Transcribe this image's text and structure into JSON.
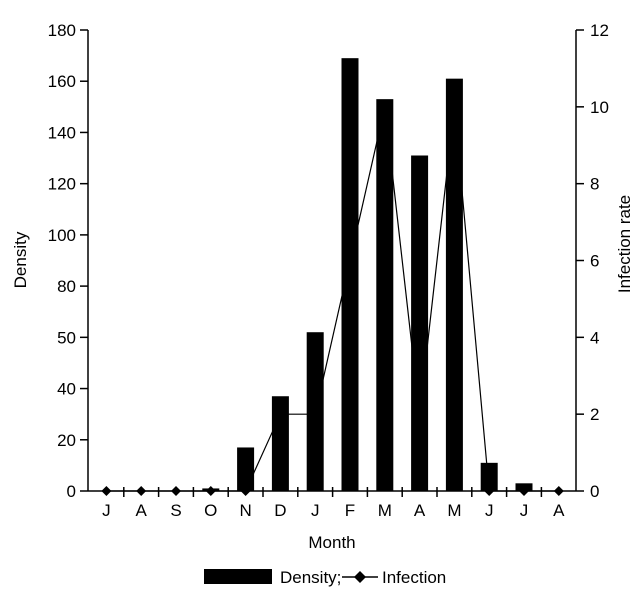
{
  "chart_data": {
    "type": "bar",
    "categories": [
      "J",
      "A",
      "S",
      "O",
      "N",
      "D",
      "J",
      "F",
      "M",
      "A",
      "M",
      "J",
      "J",
      "A"
    ],
    "series": [
      {
        "name": "Density",
        "type": "bar",
        "axis": "left",
        "values": [
          0,
          0,
          0,
          1,
          17,
          37,
          53,
          169,
          153,
          131,
          161,
          11,
          3,
          0
        ]
      },
      {
        "name": "Infection",
        "type": "line",
        "axis": "right",
        "values": [
          0,
          0,
          0,
          0,
          0,
          2,
          2,
          6,
          10,
          2,
          10,
          0,
          0,
          0
        ]
      }
    ],
    "xlabel": "Month",
    "ylabel_left": "Density",
    "ylabel_right": "Infection rate",
    "left_ticks": [
      0,
      20,
      40,
      50,
      80,
      100,
      120,
      140,
      160,
      180
    ],
    "right_ticks": [
      0,
      2,
      4,
      6,
      8,
      10,
      12
    ],
    "ylim_left": [
      0,
      180
    ],
    "ylim_right": [
      0,
      12
    ],
    "legend": {
      "position": "bottom",
      "bar_label": "Density;",
      "line_label": "Infection"
    },
    "colors": {
      "bar": "#000000",
      "line": "#000000"
    }
  }
}
